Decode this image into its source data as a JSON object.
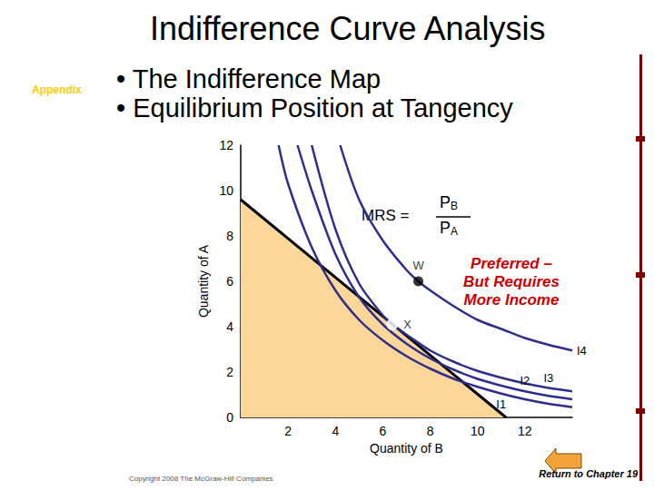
{
  "chart_data": {
    "type": "line",
    "title": "Indifference Curve Analysis",
    "subtitle": [
      "• The Indifference Map",
      "• Equilibrium Position at Tangency"
    ],
    "x_label": "Quantity of B",
    "y_label": "Quantity of A",
    "xlim": [
      0,
      14
    ],
    "xticks": [
      2,
      4,
      6,
      8,
      10,
      12
    ],
    "ylim": [
      0,
      12
    ],
    "yticks": [
      0,
      2,
      4,
      6,
      8,
      10,
      12
    ],
    "grid": false,
    "series": [
      {
        "type": "area",
        "color": "#000000",
        "x": [
          0,
          11.2
        ],
        "values": [
          9.6,
          0
        ]
      },
      {
        "name": "I1",
        "type": "line",
        "color": "#2E2E8F",
        "x": [
          1.6,
          2,
          3,
          4,
          5,
          6,
          7,
          8,
          9,
          10,
          11,
          12,
          13,
          14
        ],
        "values": [
          12,
          10.3,
          7.5,
          5.6,
          4.3,
          3.4,
          2.7,
          2.15,
          1.7,
          1.35,
          1.05,
          0.8,
          0.6,
          0.45
        ]
      },
      {
        "name": "I2",
        "type": "line",
        "color": "#2E2E8F",
        "x": [
          2.4,
          3,
          4,
          5,
          6,
          7,
          8,
          9,
          10,
          11,
          12,
          13,
          14
        ],
        "values": [
          12,
          10,
          7.2,
          5.3,
          4.1,
          3.25,
          2.6,
          2.1,
          1.7,
          1.4,
          1.15,
          0.95,
          0.8
        ]
      },
      {
        "name": "I3",
        "type": "line",
        "color": "#2E2E8F",
        "x": [
          3,
          4,
          5,
          6,
          6.4,
          7,
          8,
          9,
          10,
          11,
          12,
          13,
          14
        ],
        "values": [
          12,
          8.3,
          5.9,
          4.5,
          4.1,
          3.65,
          2.95,
          2.45,
          2.05,
          1.75,
          1.5,
          1.3,
          1.15
        ]
      },
      {
        "name": "I4",
        "type": "line",
        "color": "#2E2E8F",
        "x": [
          4.2,
          5,
          6,
          7,
          7.5,
          8,
          9,
          10,
          11,
          12,
          13,
          14
        ],
        "values": [
          12,
          9.6,
          7.8,
          6.5,
          6.0,
          5.6,
          4.9,
          4.3,
          3.9,
          3.5,
          3.2,
          2.95
        ]
      },
      {
        "type": "scatter",
        "marker": "filled",
        "color": "#000000",
        "labels": [
          "W"
        ],
        "x": [
          7.5
        ],
        "values": [
          6
        ]
      },
      {
        "type": "scatter",
        "marker": "hollow",
        "color": "#000000",
        "labels": [
          "X"
        ],
        "x": [
          6.4
        ],
        "values": [
          4.1
        ]
      }
    ],
    "annotations": {
      "appendix": "Appendix",
      "mrs": {
        "left": "MRS =",
        "numerator": "PB",
        "denominator": "PA"
      },
      "preferred": [
        "Preferred –",
        "But Requires",
        "More Income"
      ],
      "return": "Return to Chapter 19",
      "copyright": "Copyright 2008 The McGraw-Hill Companies"
    }
  }
}
